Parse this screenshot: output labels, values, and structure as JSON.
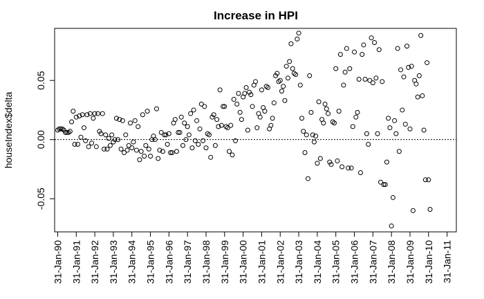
{
  "chart_data": {
    "type": "scatter",
    "title": "Increase in HPI",
    "xlabel": "",
    "ylabel": "houseIndex$delta",
    "grid": false,
    "reference_line": {
      "y": 0,
      "style": "dotted"
    },
    "ylim": [
      -0.078,
      0.094
    ],
    "y_ticks": [
      -0.05,
      0.0,
      0.05
    ],
    "y_tick_labels": [
      "-0.05",
      "0.00",
      "0.05"
    ],
    "x_tick_labels": [
      "31-Jan-90",
      "31-Jan-91",
      "31-Jan-92",
      "31-Jan-93",
      "31-Jan-94",
      "31-Jan-95",
      "31-Jan-96",
      "31-Jan-97",
      "31-Jan-98",
      "31-Jan-99",
      "31-Jan-00",
      "31-Jan-01",
      "31-Jan-02",
      "31-Jan-03",
      "31-Jan-04",
      "31-Jan-05",
      "31-Jan-06",
      "31-Jan-07",
      "31-Jan-08",
      "31-Jan-09",
      "31-Jan-10",
      "31-Jan-11"
    ],
    "x_ticks_month_index": [
      0,
      12,
      24,
      36,
      48,
      60,
      72,
      84,
      96,
      108,
      120,
      132,
      144,
      156,
      168,
      180,
      192,
      204,
      216,
      228,
      240,
      252
    ],
    "x_unit": "months since 31-Jan-90",
    "xlim": [
      -2,
      258
    ],
    "values": [
      0.008,
      0.009,
      0.009,
      0.009,
      0.008,
      0.006,
      0.006,
      0.006,
      0.007,
      0.015,
      0.024,
      -0.004,
      0.019,
      -0.004,
      0.02,
      0.002,
      0.021,
      0.01,
      -0.001,
      0.021,
      -0.006,
      0.022,
      -0.003,
      0.018,
      0.022,
      -0.006,
      0.022,
      0.007,
      0.005,
      0.022,
      -0.008,
      0.004,
      -0.008,
      0.001,
      -0.005,
      0.004,
      -0.002,
      0.0,
      0.018,
      0.0,
      0.017,
      -0.008,
      0.016,
      -0.011,
      0.004,
      -0.009,
      -0.005,
      0.014,
      -0.007,
      -0.002,
      0.016,
      -0.009,
      0.011,
      -0.017,
      -0.01,
      0.021,
      -0.014,
      -0.005,
      0.024,
      -0.008,
      -0.014,
      0.0,
      0.003,
      0.0,
      0.026,
      -0.016,
      -0.009,
      0.006,
      -0.01,
      0.004,
      0.004,
      -0.004,
      0.005,
      -0.011,
      -0.011,
      0.014,
      0.017,
      -0.01,
      0.006,
      0.006,
      0.019,
      -0.005,
      0.014,
      0.0,
      0.011,
      0.004,
      0.022,
      -0.007,
      0.025,
      -0.001,
      0.016,
      -0.004,
      0.009,
      0.03,
      -0.001,
      0.028,
      -0.007,
      0.005,
      0.004,
      -0.015,
      0.019,
      0.021,
      -0.005,
      0.017,
      0.011,
      0.042,
      0.012,
      0.028,
      0.028,
      0.011,
      0.01,
      -0.01,
      0.012,
      -0.013,
      0.034,
      -0.001,
      0.03,
      0.039,
      0.023,
      0.017,
      0.036,
      0.039,
      0.044,
      0.008,
      0.04,
      0.038,
      0.028,
      0.046,
      0.049,
      0.01,
      0.022,
      0.019,
      0.042,
      0.027,
      0.024,
      0.045,
      0.044,
      0.009,
      0.012,
      0.018,
      0.031,
      0.054,
      0.056,
      0.049,
      0.05,
      0.041,
      0.045,
      0.033,
      0.062,
      0.052,
      0.066,
      0.081,
      0.06,
      0.056,
      0.055,
      0.085,
      0.09,
      0.046,
      0.018,
      0.007,
      -0.011,
      0.004,
      -0.033,
      0.054,
      0.023,
      0.004,
      -0.002,
      0.003,
      -0.02,
      0.032,
      -0.016,
      0.017,
      0.014,
      0.03,
      0.026,
      0.022,
      -0.019,
      -0.021,
      0.015,
      0.014,
      0.06,
      -0.018,
      0.024,
      0.072,
      -0.023,
      0.046,
      0.057,
      0.077,
      -0.024,
      0.06,
      -0.024,
      0.011,
      0.074,
      0.019,
      0.023,
      0.051,
      -0.028,
      0.072,
      0.08,
      0.051,
      0.005,
      -0.004,
      0.05,
      0.086,
      0.048,
      0.082,
      0.052,
      0.005,
      0.076,
      -0.036,
      0.049,
      -0.038,
      -0.038,
      -0.019,
      0.018,
      0.01,
      -0.073,
      -0.049,
      0.016,
      0.005,
      0.077,
      -0.01,
      0.059,
      0.025,
      0.053,
      0.013,
      0.079,
      0.061,
      0.009,
      0.062,
      -0.06,
      0.05,
      0.047,
      0.036,
      0.054,
      0.088,
      0.037,
      0.008,
      -0.034,
      0.065,
      -0.034,
      -0.059
    ]
  }
}
